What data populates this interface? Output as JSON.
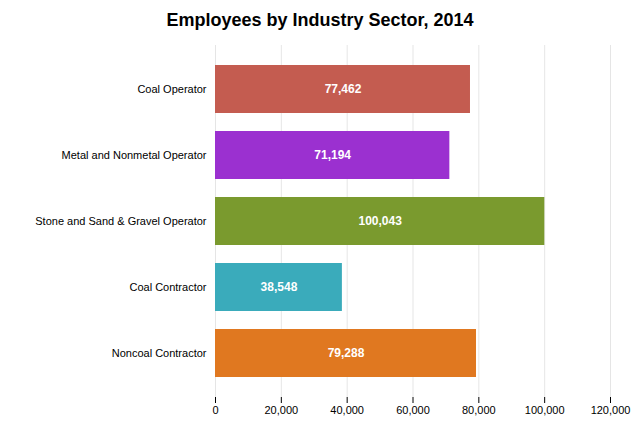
{
  "chart_data": {
    "type": "bar",
    "orientation": "horizontal",
    "title": "Employees by Industry Sector, 2014",
    "categories": [
      "Noncoal Contractor",
      "Coal Contractor",
      "Stone and Sand & Gravel Operator",
      "Metal and Nonmetal Operator",
      "Coal Operator"
    ],
    "values": [
      79288,
      38548,
      100043,
      71194,
      77462
    ],
    "value_labels": [
      "79,288",
      "38,548",
      "100,043",
      "71,194",
      "77,462"
    ],
    "colors": [
      "#E07820",
      "#3AABBB",
      "#7A9A2E",
      "#9B30D0",
      "#C45C50"
    ],
    "xlim": [
      0,
      120000
    ],
    "xticks": [
      0,
      {
        "value": 20000,
        "label": "20,000"
      },
      {
        "value": 40000,
        "label": "40,000"
      },
      {
        "value": 60000,
        "label": "60,000"
      },
      {
        "value": 80000,
        "label": "80,000"
      },
      {
        "value": 100000,
        "label": "100,000"
      },
      {
        "value": 120000,
        "label": "120,000"
      }
    ],
    "grid": true,
    "data_labels": true
  }
}
